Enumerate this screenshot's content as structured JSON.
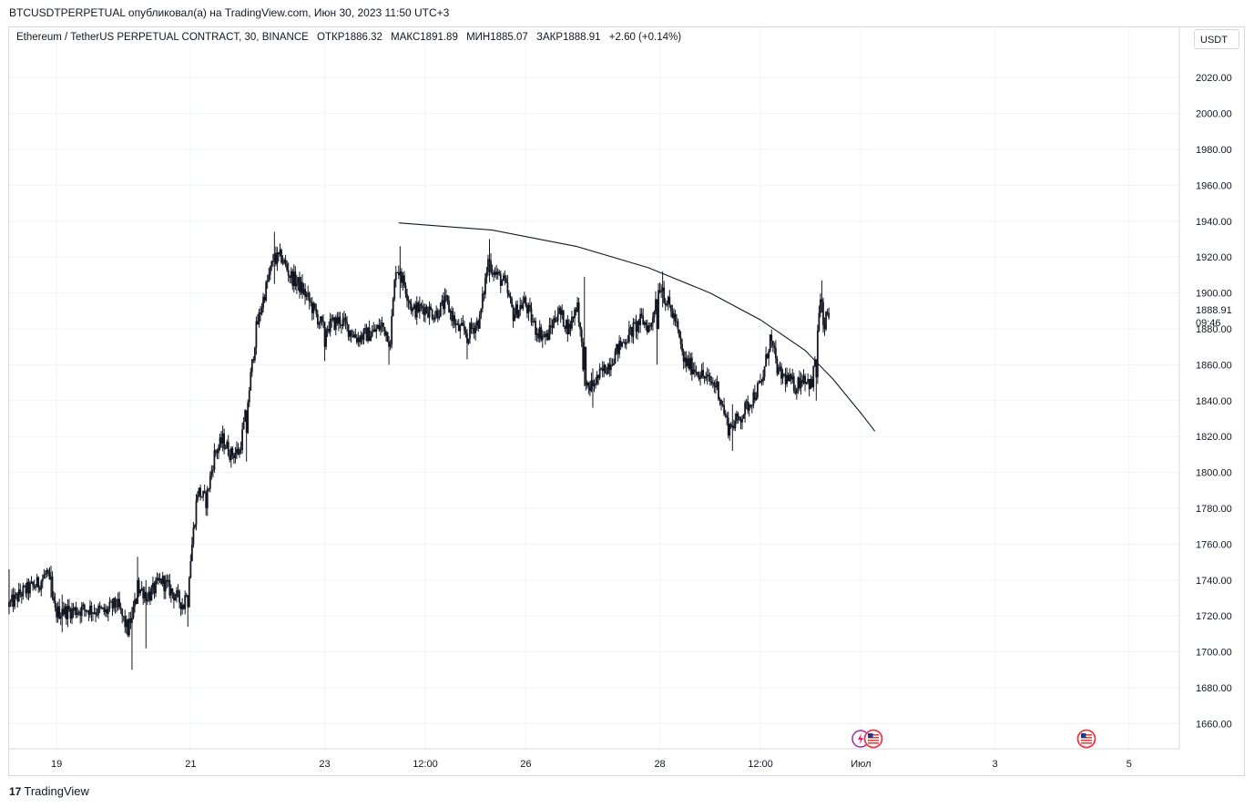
{
  "publication": {
    "text": "BTCUSDTPERPETUAL опубликовал(а) на TradingView.com, Июн 30, 2023 11:50 UTC+3"
  },
  "legend": {
    "symbol": "Ethereum / TetherUS PERPETUAL CONTRACT, 30, BINANCE",
    "open": "ОТКР1886.32",
    "high": "МАКС1891.89",
    "low": "МИН1885.07",
    "close": "ЗАКР1888.91",
    "change": "+2.60 (+0.14%)"
  },
  "currency": "USDT",
  "last_price": {
    "value": "1888.91",
    "countdown": "09:46"
  },
  "footer": {
    "brand_glyph": "17",
    "brand": "TradingView"
  },
  "colors": {
    "candle": "#131722",
    "grid": "#f0f3fa",
    "axis_text": "#131722",
    "trendline": "#131722"
  },
  "event_icons": [
    "lightning-icon",
    "us-flag-icon",
    "us-flag-icon"
  ],
  "chart_data": {
    "type": "candlestick",
    "interval": "30m",
    "y_axis": {
      "ticks": [
        "1660.00",
        "1680.00",
        "1700.00",
        "1720.00",
        "1740.00",
        "1760.00",
        "1780.00",
        "1800.00",
        "1820.00",
        "1840.00",
        "1860.00",
        "1880.00",
        "1900.00",
        "1920.00",
        "1940.00",
        "1960.00",
        "1980.00",
        "2000.00",
        "2020.00"
      ],
      "range": [
        1646,
        2048
      ]
    },
    "x_axis": {
      "ticks": [
        "19",
        "21",
        "23",
        "12:00",
        "26",
        "28",
        "12:00",
        "Июл",
        "3",
        "5"
      ],
      "tick_dates": [
        "2023-06-19 00:00",
        "2023-06-21 00:00",
        "2023-06-23 00:00",
        "2023-06-24 12:00",
        "2023-06-26 00:00",
        "2023-06-28 00:00",
        "2023-06-29 12:00",
        "2023-07-01 00:00",
        "2023-07-03 00:00",
        "2023-07-05 00:00"
      ],
      "range": [
        "2023-06-18 07:00",
        "2023-07-05 18:00"
      ]
    },
    "price_path": [
      [
        "2023-06-18 07:00",
        1725
      ],
      [
        "2023-06-18 12:00",
        1733
      ],
      [
        "2023-06-18 18:00",
        1738
      ],
      [
        "2023-06-18 21:00",
        1744
      ],
      [
        "2023-06-19 00:00",
        1722
      ],
      [
        "2023-06-19 06:00",
        1723
      ],
      [
        "2023-06-19 12:00",
        1724
      ],
      [
        "2023-06-19 18:00",
        1722
      ],
      [
        "2023-06-19 22:00",
        1727
      ],
      [
        "2023-06-20 02:00",
        1712
      ],
      [
        "2023-06-20 06:00",
        1735
      ],
      [
        "2023-06-20 10:00",
        1732
      ],
      [
        "2023-06-20 14:00",
        1740
      ],
      [
        "2023-06-20 18:00",
        1733
      ],
      [
        "2023-06-20 22:00",
        1726
      ],
      [
        "2023-06-21 00:00",
        1745
      ],
      [
        "2023-06-21 03:00",
        1790
      ],
      [
        "2023-06-21 06:00",
        1784
      ],
      [
        "2023-06-21 09:00",
        1810
      ],
      [
        "2023-06-21 12:00",
        1818
      ],
      [
        "2023-06-21 15:00",
        1810
      ],
      [
        "2023-06-21 18:00",
        1812
      ],
      [
        "2023-06-21 21:00",
        1840
      ],
      [
        "2023-06-22 00:00",
        1880
      ],
      [
        "2023-06-22 03:00",
        1900
      ],
      [
        "2023-06-22 06:00",
        1918
      ],
      [
        "2023-06-22 09:00",
        1920
      ],
      [
        "2023-06-22 12:00",
        1910
      ],
      [
        "2023-06-22 15:00",
        1905
      ],
      [
        "2023-06-22 18:00",
        1898
      ],
      [
        "2023-06-23 00:00",
        1880
      ],
      [
        "2023-06-23 06:00",
        1885
      ],
      [
        "2023-06-23 12:00",
        1875
      ],
      [
        "2023-06-23 18:00",
        1878
      ],
      [
        "2023-06-23 21:00",
        1882
      ],
      [
        "2023-06-24 00:00",
        1875
      ],
      [
        "2023-06-24 02:00",
        1915
      ],
      [
        "2023-06-24 05:00",
        1905
      ],
      [
        "2023-06-24 08:00",
        1890
      ],
      [
        "2023-06-24 12:00",
        1892
      ],
      [
        "2023-06-24 16:00",
        1888
      ],
      [
        "2023-06-24 20:00",
        1895
      ],
      [
        "2023-06-25 00:00",
        1880
      ],
      [
        "2023-06-25 04:00",
        1878
      ],
      [
        "2023-06-25 08:00",
        1885
      ],
      [
        "2023-06-25 11:00",
        1918
      ],
      [
        "2023-06-25 14:00",
        1910
      ],
      [
        "2023-06-25 17:00",
        1905
      ],
      [
        "2023-06-25 20:00",
        1888
      ],
      [
        "2023-06-26 00:00",
        1895
      ],
      [
        "2023-06-26 04:00",
        1880
      ],
      [
        "2023-06-26 08:00",
        1875
      ],
      [
        "2023-06-26 12:00",
        1890
      ],
      [
        "2023-06-26 16:00",
        1880
      ],
      [
        "2023-06-26 19:00",
        1895
      ],
      [
        "2023-06-26 22:00",
        1845
      ],
      [
        "2023-06-27 02:00",
        1852
      ],
      [
        "2023-06-27 06:00",
        1860
      ],
      [
        "2023-06-27 10:00",
        1870
      ],
      [
        "2023-06-27 14:00",
        1878
      ],
      [
        "2023-06-27 18:00",
        1885
      ],
      [
        "2023-06-27 21:00",
        1880
      ],
      [
        "2023-06-28 00:00",
        1905
      ],
      [
        "2023-06-28 03:00",
        1895
      ],
      [
        "2023-06-28 06:00",
        1885
      ],
      [
        "2023-06-28 09:00",
        1862
      ],
      [
        "2023-06-28 13:00",
        1858
      ],
      [
        "2023-06-28 17:00",
        1852
      ],
      [
        "2023-06-28 21:00",
        1848
      ],
      [
        "2023-06-29 01:00",
        1825
      ],
      [
        "2023-06-29 05:00",
        1830
      ],
      [
        "2023-06-29 09:00",
        1840
      ],
      [
        "2023-06-29 13:00",
        1850
      ],
      [
        "2023-06-29 16:00",
        1875
      ],
      [
        "2023-06-29 19:00",
        1855
      ],
      [
        "2023-06-29 22:00",
        1852
      ],
      [
        "2023-06-30 01:00",
        1848
      ],
      [
        "2023-06-30 04:00",
        1854
      ],
      [
        "2023-06-30 07:00",
        1848
      ],
      [
        "2023-06-30 09:00",
        1880
      ],
      [
        "2023-06-30 10:00",
        1895
      ],
      [
        "2023-06-30 11:00",
        1878
      ],
      [
        "2023-06-30 12:30",
        1889
      ]
    ],
    "extremes": [
      [
        "2023-06-18 07:00",
        1728,
        1746,
        1721
      ],
      [
        "2023-06-18 22:00",
        1742,
        1748,
        1730
      ],
      [
        "2023-06-19 02:00",
        1724,
        1732,
        1711
      ],
      [
        "2023-06-20 03:00",
        1719,
        1725,
        1690
      ],
      [
        "2023-06-20 05:00",
        1740,
        1753,
        1733
      ],
      [
        "2023-06-20 08:00",
        1728,
        1740,
        1702
      ],
      [
        "2023-06-20 23:00",
        1725,
        1730,
        1714
      ],
      [
        "2023-06-21 20:00",
        1822,
        1826,
        1806
      ],
      [
        "2023-06-22 06:00",
        1922,
        1934,
        1905
      ],
      [
        "2023-06-23 00:00",
        1870,
        1880,
        1862
      ],
      [
        "2023-06-23 23:00",
        1870,
        1876,
        1860
      ],
      [
        "2023-06-24 03:00",
        1912,
        1926,
        1897
      ],
      [
        "2023-06-25 03:00",
        1872,
        1880,
        1863
      ],
      [
        "2023-06-25 11:00",
        1918,
        1930,
        1906
      ],
      [
        "2023-06-26 21:00",
        1870,
        1909,
        1848
      ],
      [
        "2023-06-27 00:00",
        1848,
        1858,
        1836
      ],
      [
        "2023-06-27 23:00",
        1880,
        1885,
        1860
      ],
      [
        "2023-06-28 01:00",
        1903,
        1912,
        1892
      ],
      [
        "2023-06-29 02:00",
        1826,
        1838,
        1812
      ],
      [
        "2023-06-30 08:00",
        1853,
        1857,
        1840
      ],
      [
        "2023-06-30 10:00",
        1895,
        1907,
        1889
      ]
    ],
    "trendline": [
      [
        "2023-06-24 02:30",
        1939
      ],
      [
        "2023-06-25 12:00",
        1935
      ],
      [
        "2023-06-26 18:00",
        1926
      ],
      [
        "2023-06-27 20:00",
        1914
      ],
      [
        "2023-06-28 18:00",
        1900
      ],
      [
        "2023-06-29 12:00",
        1885
      ],
      [
        "2023-06-30 04:00",
        1868
      ],
      [
        "2023-06-30 14:00",
        1852
      ],
      [
        "2023-07-01 00:00",
        1833
      ],
      [
        "2023-07-01 05:00",
        1823
      ]
    ],
    "last_ohlc": {
      "open": 1886.32,
      "high": 1891.89,
      "low": 1885.07,
      "close": 1888.91
    }
  }
}
